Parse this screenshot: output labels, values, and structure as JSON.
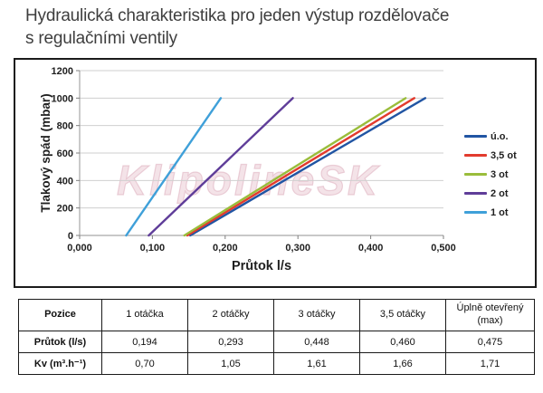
{
  "page": {
    "title_line1": "Hydraulická charakteristika pro jeden výstup rozdělovače",
    "title_line2": "s regulačními ventily"
  },
  "watermark": "KlipolineSK",
  "chart_data": {
    "type": "line",
    "title": "",
    "xlabel": "Průtok l/s",
    "ylabel": "Tlakový spád (mbar)",
    "xlim": [
      0,
      0.5
    ],
    "ylim": [
      0,
      1200
    ],
    "grid": "horizontal",
    "legend_position": "right",
    "x_ticks": {
      "values": [
        0,
        0.1,
        0.2,
        0.3,
        0.4,
        0.5
      ],
      "labels": [
        "0,000",
        "0,100",
        "0,200",
        "0,300",
        "0,400",
        "0,500"
      ]
    },
    "y_ticks": {
      "values": [
        0,
        200,
        400,
        600,
        800,
        1000,
        1200
      ],
      "labels": [
        "0",
        "200",
        "400",
        "600",
        "800",
        "1000",
        "1200"
      ]
    },
    "colors": {
      "grid": "#cfcfcf",
      "axis": "#a6a6a6",
      "tick": "#7f7f7f",
      "text": "#1f1f1f"
    },
    "series": [
      {
        "name": "ú.o.",
        "color": "#2155A3",
        "points": [
          [
            0.152,
            0
          ],
          [
            0.475,
            1000
          ]
        ]
      },
      {
        "name": "3,5 ot",
        "color": "#E23B2E",
        "points": [
          [
            0.148,
            0
          ],
          [
            0.46,
            1000
          ]
        ]
      },
      {
        "name": "3 ot",
        "color": "#9ABD3B",
        "points": [
          [
            0.144,
            0
          ],
          [
            0.448,
            1000
          ]
        ]
      },
      {
        "name": "2 ot",
        "color": "#5F3D99",
        "points": [
          [
            0.095,
            0
          ],
          [
            0.293,
            1000
          ]
        ]
      },
      {
        "name": "1 ot",
        "color": "#3FA0D9",
        "points": [
          [
            0.064,
            0
          ],
          [
            0.194,
            1000
          ]
        ]
      }
    ]
  },
  "table": {
    "headers": [
      "Pozice",
      "1 otáčka",
      "2 otáčky",
      "3 otáčky",
      "3,5 otáčky",
      "Úplně otevřený (max)"
    ],
    "rows": [
      {
        "label": "Průtok (l/s)",
        "values": [
          "0,194",
          "0,293",
          "0,448",
          "0,460",
          "0,475"
        ]
      },
      {
        "label": "Kv (m³.h⁻¹)",
        "values": [
          "0,70",
          "1,05",
          "1,61",
          "1,66",
          "1,71"
        ]
      }
    ]
  }
}
